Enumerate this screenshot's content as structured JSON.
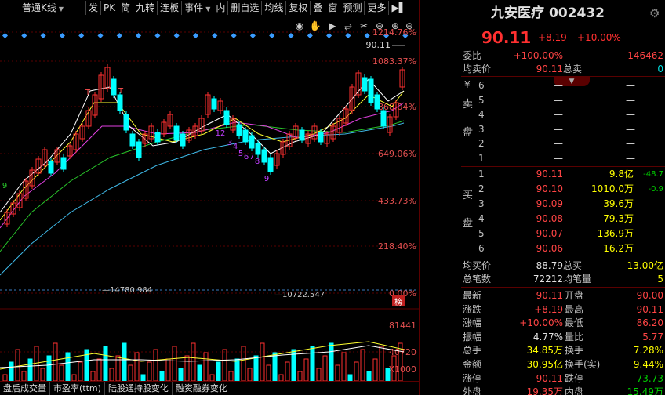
{
  "toolbar": {
    "period": "普通K线",
    "buttons": [
      "发",
      "PK",
      "简",
      "九转",
      "连板",
      "事件",
      "内",
      "删自选",
      "均线",
      "复权",
      "叠",
      "窗",
      "预测",
      "更多"
    ]
  },
  "price_axis": [
    "1214.76%",
    "1083.37%",
    "868.04%",
    "649.06%",
    "433.73%",
    "218.40%",
    "0.00%"
  ],
  "last_price_label": "90.11",
  "ma_label_1": "14780.984",
  "ma_label_2": "10722.547",
  "bang_label": "榜",
  "volume_axis": [
    "81441",
    "40720",
    "X1000"
  ],
  "nine_turn_labels": [
    "9",
    "T",
    "T",
    "12",
    "3",
    "4",
    "5",
    "6",
    "7",
    "8",
    "9"
  ],
  "bottom_tabs": [
    "盘后成交量",
    "市盈率(ttm)",
    "陆股通持股变化",
    "融资融券变化"
  ],
  "stock": {
    "name": "九安医疗",
    "code": "002432"
  },
  "quote_header": {
    "price": "90.11",
    "change": "+8.19",
    "pct": "+10.00%"
  },
  "weibi": {
    "label": "委比",
    "pct": "+100.00%",
    "diff": "146462"
  },
  "junmaijia": {
    "label": "均卖价",
    "value": "90.11",
    "label2": "总卖",
    "value2": "0"
  },
  "sell_label": [
    "卖",
    "盘"
  ],
  "buy_label": [
    "买",
    "盘"
  ],
  "sell_rows": [
    {
      "lvl": "6",
      "price": "—",
      "vol": "—"
    },
    {
      "lvl": "5",
      "price": "—",
      "vol": "—"
    },
    {
      "lvl": "4",
      "price": "—",
      "vol": "—"
    },
    {
      "lvl": "3",
      "price": "—",
      "vol": "—"
    },
    {
      "lvl": "2",
      "price": "—",
      "vol": "—"
    },
    {
      "lvl": "1",
      "price": "—",
      "vol": "—"
    }
  ],
  "sell_currency": "¥",
  "buy_rows": [
    {
      "lvl": "1",
      "price": "90.11",
      "vol": "9.8亿",
      "chg": "-48.7"
    },
    {
      "lvl": "2",
      "price": "90.10",
      "vol": "1010.0万",
      "chg": "-0.9"
    },
    {
      "lvl": "3",
      "price": "90.09",
      "vol": "39.6万",
      "chg": ""
    },
    {
      "lvl": "4",
      "price": "90.08",
      "vol": "79.3万",
      "chg": ""
    },
    {
      "lvl": "5",
      "price": "90.07",
      "vol": "136.9万",
      "chg": ""
    },
    {
      "lvl": "6",
      "price": "90.06",
      "vol": "16.2万",
      "chg": ""
    }
  ],
  "junmaijia_buy": {
    "label": "均买价",
    "value": "88.79",
    "label2": "总买",
    "value2": "13.00亿"
  },
  "bishu": {
    "label": "总笔数",
    "value": "72212",
    "label2": "均笔量",
    "value2": "5"
  },
  "stats": [
    {
      "l1": "最新",
      "v1": "90.11",
      "c1": "red",
      "l2": "开盘",
      "v2": "90.00",
      "c2": "red"
    },
    {
      "l1": "涨跌",
      "v1": "+8.19",
      "c1": "red",
      "l2": "最高",
      "v2": "90.11",
      "c2": "red"
    },
    {
      "l1": "涨幅",
      "v1": "+10.00%",
      "c1": "red",
      "l2": "最低",
      "v2": "86.20",
      "c2": "red"
    },
    {
      "l1": "振幅",
      "v1": "4.77%",
      "c1": "white",
      "l2": "量比",
      "v2": "5.77",
      "c2": "red"
    },
    {
      "l1": "总手",
      "v1": "34.85万",
      "c1": "yellow",
      "l2": "换手",
      "v2": "7.28%",
      "c2": "yellow"
    },
    {
      "l1": "金额",
      "v1": "30.95亿",
      "c1": "yellow",
      "l2": "换手(实)",
      "v2": "9.44%",
      "c2": "yellow"
    },
    {
      "l1": "涨停",
      "v1": "90.11",
      "c1": "red",
      "l2": "跌停",
      "v2": "73.73",
      "c2": "green"
    },
    {
      "l1": "外盘",
      "v1": "19.35万",
      "c1": "red",
      "l2": "内盘",
      "v2": "15.49万",
      "c2": "green"
    }
  ],
  "colors": {
    "up": "#ff3030",
    "down": "#00ffff",
    "bg": "#000000",
    "border": "#5a0000"
  }
}
